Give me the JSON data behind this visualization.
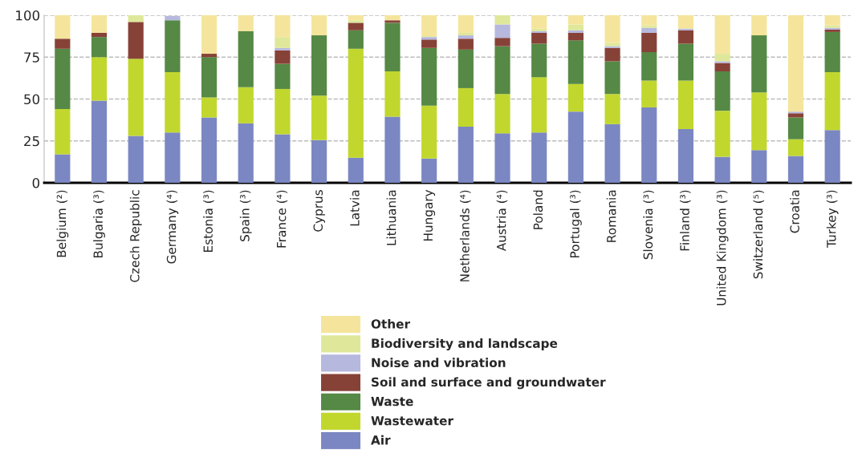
{
  "chart_data": {
    "type": "bar",
    "stacked": true,
    "categories": [
      "Belgium (²)",
      "Bulgaria (³)",
      "Czech Republic",
      "Germany (⁴)",
      "Estonia (³)",
      "Spain (³)",
      "France (⁴)",
      "Cyprus",
      "Latvia",
      "Lithuania",
      "Hungary",
      "Netherlands (⁴)",
      "Austria (⁴)",
      "Poland",
      "Portugal (³)",
      "Romania",
      "Slovenia (³)",
      "Finland (³)",
      "United Kingdom (³)",
      "Switzerland (⁵)",
      "Croatia",
      "Turkey (³)"
    ],
    "series": [
      {
        "name": "Air",
        "color": "#7b87c2",
        "values": [
          17,
          49,
          28,
          30,
          39,
          35.5,
          29,
          25.5,
          15,
          39.5,
          14.5,
          33.5,
          29.5,
          30,
          42.5,
          35,
          45,
          32,
          15.5,
          19.5,
          16,
          31.5
        ]
      },
      {
        "name": "Wastewater",
        "color": "#c1d72e",
        "values": [
          27,
          26,
          46,
          36,
          12,
          21.5,
          27,
          26.5,
          65,
          27,
          31.5,
          23,
          23.5,
          33,
          16.5,
          18,
          16,
          29,
          27.5,
          34.5,
          10,
          34.5
        ]
      },
      {
        "name": "Waste",
        "color": "#558945",
        "values": [
          36,
          12,
          0,
          31,
          24,
          33.5,
          15,
          36,
          11,
          29,
          34.5,
          23,
          28.5,
          20,
          26,
          19.5,
          17,
          22,
          23.5,
          34,
          13,
          24
        ]
      },
      {
        "name": "Soil and surface and groundwater",
        "color": "#874237",
        "values": [
          6,
          2.5,
          22,
          0,
          2,
          0,
          8,
          0,
          4.5,
          1.5,
          5,
          6.5,
          5,
          6.5,
          4.5,
          8,
          11.5,
          8,
          5,
          0,
          2.5,
          1.5
        ]
      },
      {
        "name": "Noise and vibration",
        "color": "#b6b8de",
        "values": [
          0,
          0,
          0,
          2.5,
          0,
          0,
          1.5,
          0,
          0,
          0,
          1.5,
          2,
          8,
          1,
          1.5,
          1,
          3,
          1,
          1,
          0,
          1,
          1
        ]
      },
      {
        "name": "Biodiversity and landscape",
        "color": "#dfe89a",
        "values": [
          0,
          0,
          4,
          0,
          0,
          0,
          6.5,
          0,
          1.5,
          0,
          0.5,
          1.5,
          5.5,
          1.5,
          3.5,
          2,
          1.5,
          0,
          4.5,
          0,
          0,
          1.5
        ]
      },
      {
        "name": "Other",
        "color": "#f5e59c",
        "values": [
          14,
          10.5,
          0,
          0,
          23,
          9.5,
          13,
          12,
          3,
          3,
          12.5,
          10.5,
          0,
          8,
          5.5,
          16.5,
          6,
          8,
          23,
          12,
          57.5,
          6
        ]
      }
    ],
    "ylim": [
      0,
      100
    ],
    "yticks": [
      0,
      25,
      50,
      75,
      100
    ],
    "grid": "y",
    "legend": "bottom"
  }
}
